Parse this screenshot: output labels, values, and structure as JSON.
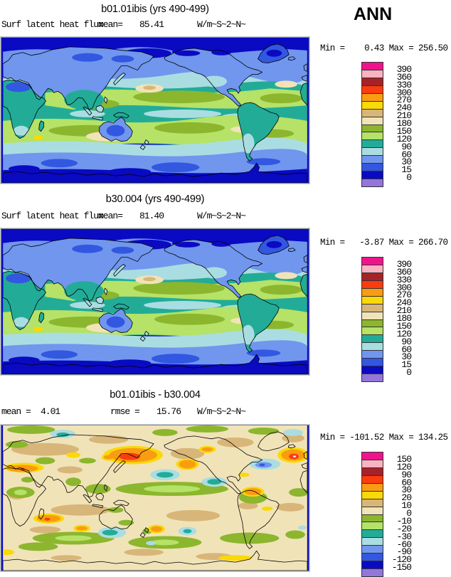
{
  "header": {
    "season": "ANN"
  },
  "palette_top_to_bottom": [
    "#f0148c",
    "#fbb3c1",
    "#a62228",
    "#fa3c0f",
    "#fa9c12",
    "#f9d908",
    "#d8b679",
    "#f1e3b8",
    "#8cb62e",
    "#b5e267",
    "#22ac98",
    "#aadde2",
    "#7196ee",
    "#3257e0",
    "#0a0ac2",
    "#9476d9"
  ],
  "panels": [
    {
      "title": "b01.01ibis (yrs 490-499)",
      "var_label": "Surf latent heat flux",
      "stats": [
        {
          "label": "mean=",
          "value": "85.41"
        }
      ],
      "units": "W/m~S~2~N~",
      "minmax": "Min =    0.43 Max = 256.50",
      "colorbar": {
        "labels": [
          "390",
          "360",
          "330",
          "300",
          "270",
          "240",
          "210",
          "180",
          "150",
          "120",
          "90",
          "60",
          "30",
          "15",
          "0"
        ]
      }
    },
    {
      "title": "b30.004 (yrs 490-499)",
      "var_label": "Surf latent heat flux",
      "stats": [
        {
          "label": "mean=",
          "value": "81.40"
        }
      ],
      "units": "W/m~S~2~N~",
      "minmax": "Min =   -3.87 Max = 266.70",
      "colorbar": {
        "labels": [
          "390",
          "360",
          "330",
          "300",
          "270",
          "240",
          "210",
          "180",
          "150",
          "120",
          "90",
          "60",
          "30",
          "15",
          "0"
        ]
      }
    },
    {
      "title": "b01.01ibis - b30.004",
      "var_label": "",
      "stats": [
        {
          "label": "mean =",
          "value": "4.01"
        },
        {
          "label": "rmse =",
          "value": "15.76"
        }
      ],
      "units": "W/m~S~2~N~",
      "minmax": "Min = -101.52 Max = 134.25",
      "colorbar": {
        "labels": [
          "150",
          "120",
          "90",
          "60",
          "30",
          "20",
          "10",
          "0",
          "-10",
          "-20",
          "-30",
          "-60",
          "-90",
          "-120",
          "-150"
        ]
      }
    }
  ],
  "chart_data": {
    "type": "heatmap",
    "variable": "Surf latent heat flux",
    "units": "W/m~S~2~N~",
    "season": "ANN",
    "layout": "three global lat-lon filled-contour maps, shared discrete palette, colorbar at right of each panel",
    "palette_low_to_high": [
      "#9476d9",
      "#0a0ac2",
      "#3257e0",
      "#7196ee",
      "#aadde2",
      "#22ac98",
      "#b5e267",
      "#8cb62e",
      "#f1e3b8",
      "#d8b679",
      "#f9d908",
      "#fa9c12",
      "#fa3c0f",
      "#a62228",
      "#fbb3c1",
      "#f0148c"
    ],
    "panels": [
      {
        "title": "b01.01ibis (yrs 490-499)",
        "mean": 85.41,
        "min": 0.43,
        "max": 256.5,
        "contour_levels": [
          0,
          15,
          30,
          60,
          90,
          120,
          150,
          180,
          210,
          240,
          270,
          300,
          330,
          360,
          390
        ]
      },
      {
        "title": "b30.004 (yrs 490-499)",
        "mean": 81.4,
        "min": -3.87,
        "max": 266.7,
        "contour_levels": [
          0,
          15,
          30,
          60,
          90,
          120,
          150,
          180,
          210,
          240,
          270,
          300,
          330,
          360,
          390
        ]
      },
      {
        "title": "b01.01ibis - b30.004",
        "mean": 4.01,
        "rmse": 15.76,
        "min": -101.52,
        "max": 134.25,
        "contour_levels": [
          -150,
          -120,
          -90,
          -60,
          -30,
          -20,
          -10,
          0,
          10,
          20,
          30,
          60,
          90,
          120,
          150
        ]
      }
    ]
  }
}
